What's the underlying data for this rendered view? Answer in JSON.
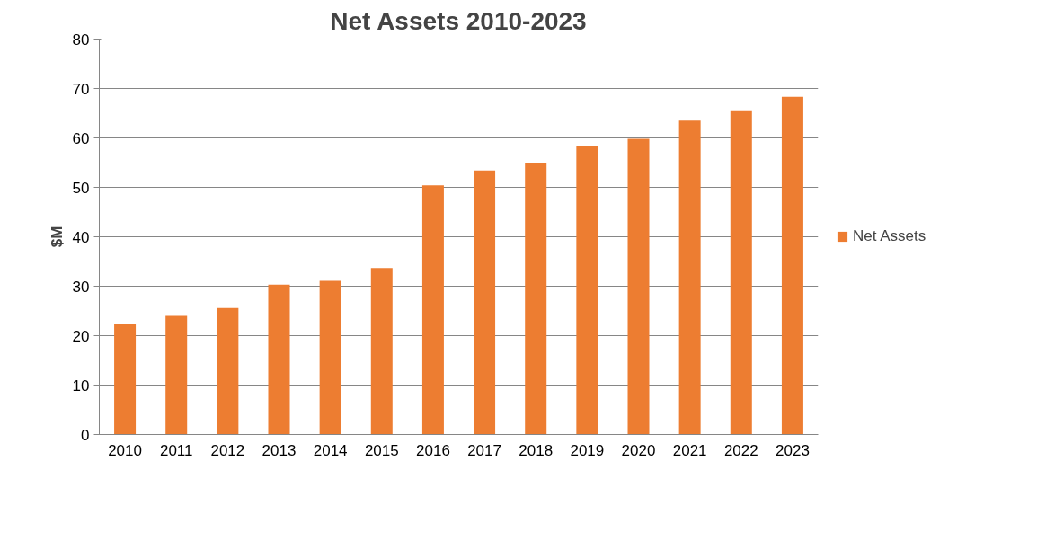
{
  "chart_data": {
    "type": "bar",
    "title": "Net Assets 2010-2023",
    "ylabel": "$M",
    "categories": [
      "2010",
      "2011",
      "2012",
      "2013",
      "2014",
      "2015",
      "2016",
      "2017",
      "2018",
      "2019",
      "2020",
      "2021",
      "2022",
      "2023"
    ],
    "series": [
      {
        "name": "Net Assets",
        "color": "#ed7d31",
        "values": [
          22.4,
          24.0,
          25.6,
          30.3,
          31.1,
          33.7,
          50.4,
          53.4,
          55.0,
          58.3,
          59.8,
          63.5,
          65.6,
          68.3
        ]
      }
    ],
    "ylim": [
      0,
      80
    ],
    "yticks": [
      0,
      10,
      20,
      30,
      40,
      50,
      60,
      70,
      80
    ],
    "grid": "y",
    "legend": "right"
  }
}
